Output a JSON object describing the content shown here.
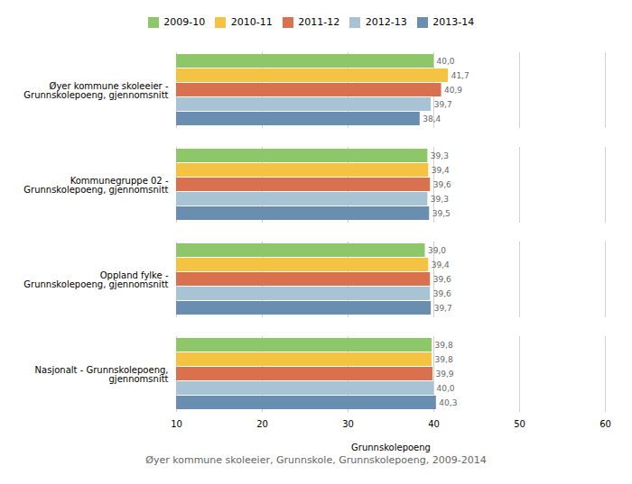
{
  "chart_data": {
    "type": "bar",
    "orientation": "horizontal",
    "categories": [
      "Øyer kommune skoleeier -\nGrunnskolepoeng, gjennomsnitt",
      "Kommunegruppe 02 -\nGrunnskolepoeng, gjennomsnitt",
      "Oppland fylke -\nGrunnskolepoeng, gjennomsnitt",
      "Nasjonalt - Grunnskolepoeng,\ngjennomsnitt"
    ],
    "series": [
      {
        "name": "2009-10",
        "color": "#8DC76A",
        "values": [
          40.0,
          39.3,
          39.0,
          39.8
        ],
        "value_labels": [
          "40,0",
          "39,3",
          "39,0",
          "39,8"
        ]
      },
      {
        "name": "2010-11",
        "color": "#F5C342",
        "values": [
          41.7,
          39.4,
          39.4,
          39.8
        ],
        "value_labels": [
          "41,7",
          "39,4",
          "39,4",
          "39,8"
        ]
      },
      {
        "name": "2011-12",
        "color": "#D9704E",
        "values": [
          40.9,
          39.6,
          39.6,
          39.9
        ],
        "value_labels": [
          "40,9",
          "39,6",
          "39,6",
          "39,9"
        ]
      },
      {
        "name": "2012-13",
        "color": "#A8C4D4",
        "values": [
          39.7,
          39.3,
          39.6,
          40.0
        ],
        "value_labels": [
          "39,7",
          "39,3",
          "39,6",
          "40,0"
        ]
      },
      {
        "name": "2013-14",
        "color": "#6A8EB0",
        "values": [
          38.4,
          39.5,
          39.7,
          40.3
        ],
        "value_labels": [
          "38,4",
          "39,5",
          "39,7",
          "40,3"
        ]
      }
    ],
    "xlabel": "Grunnskolepoeng",
    "xlim": [
      10,
      60
    ],
    "xticks": [
      10,
      20,
      30,
      40,
      50,
      60
    ],
    "grid": true,
    "data_labels": true,
    "legend": "top",
    "footnote": "Øyer kommune skoleeier, Grunnskole, Grunnskolepoeng, 2009-2014"
  }
}
